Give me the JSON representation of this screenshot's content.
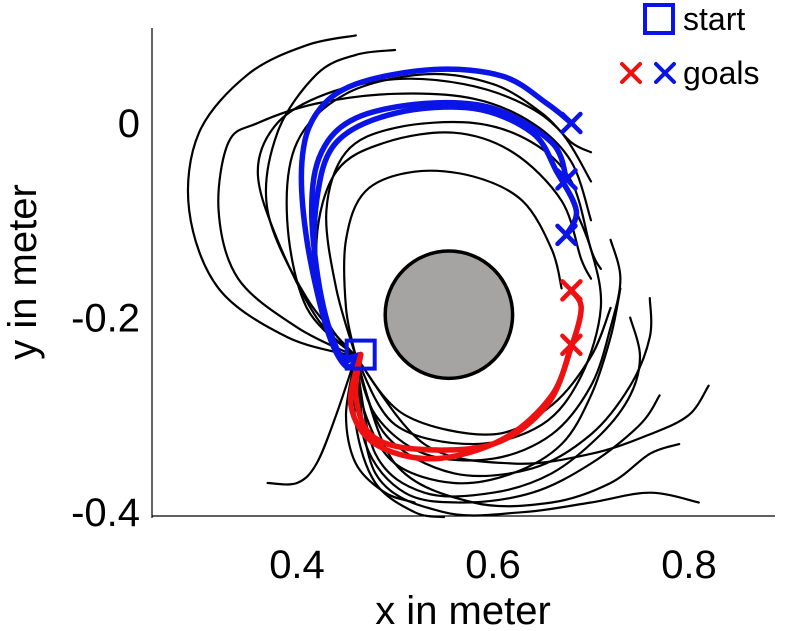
{
  "chart_data": {
    "type": "line",
    "xlabel": "x in meter",
    "ylabel": "y in meter",
    "xlim": [
      0.24,
      0.89
    ],
    "ylim": [
      -0.405,
      0.1
    ],
    "xticks": [
      0.4,
      0.6,
      0.8
    ],
    "xtick_labels": [
      "0.4",
      "0.6",
      "0.8"
    ],
    "yticks": [
      0,
      -0.2,
      -0.4
    ],
    "ytick_labels": [
      "0",
      "-0.2",
      "-0.4"
    ],
    "obstacle": {
      "center": [
        0.555,
        -0.197
      ],
      "radius": 0.065,
      "color": "#a6a3a3"
    },
    "start": {
      "label": "start",
      "x": 0.465,
      "y": -0.238,
      "color": "#0a14e6"
    },
    "legend": {
      "start_label": "start",
      "goals_label": "goals",
      "placement": "top-right"
    },
    "goals": {
      "blue": [
        [
          0.68,
          0.0
        ],
        [
          0.675,
          -0.058
        ],
        [
          0.675,
          -0.115
        ]
      ],
      "red": [
        [
          0.68,
          -0.172
        ],
        [
          0.68,
          -0.228
        ]
      ],
      "blue_color": "#0a14e6",
      "red_color": "#ee1111"
    },
    "series": [
      {
        "color": "#0a14e6",
        "kind": "generated",
        "values": [
          [
            0.465,
            -0.238
          ],
          [
            0.45,
            -0.25
          ],
          [
            0.43,
            -0.21
          ],
          [
            0.41,
            -0.12
          ],
          [
            0.405,
            -0.04
          ],
          [
            0.42,
            0.01
          ],
          [
            0.46,
            0.04
          ],
          [
            0.54,
            0.055
          ],
          [
            0.61,
            0.048
          ],
          [
            0.655,
            0.02
          ],
          [
            0.68,
            0.0
          ]
        ]
      },
      {
        "color": "#0a14e6",
        "kind": "generated",
        "values": [
          [
            0.465,
            -0.238
          ],
          [
            0.445,
            -0.24
          ],
          [
            0.425,
            -0.18
          ],
          [
            0.415,
            -0.09
          ],
          [
            0.425,
            -0.03
          ],
          [
            0.46,
            0.005
          ],
          [
            0.53,
            0.02
          ],
          [
            0.6,
            0.015
          ],
          [
            0.66,
            -0.02
          ],
          [
            0.675,
            -0.058
          ]
        ]
      },
      {
        "color": "#0a14e6",
        "kind": "generated",
        "values": [
          [
            0.465,
            -0.238
          ],
          [
            0.44,
            -0.235
          ],
          [
            0.42,
            -0.16
          ],
          [
            0.42,
            -0.08
          ],
          [
            0.44,
            -0.02
          ],
          [
            0.5,
            0.01
          ],
          [
            0.58,
            0.015
          ],
          [
            0.64,
            -0.01
          ],
          [
            0.665,
            -0.05
          ],
          [
            0.685,
            -0.09
          ],
          [
            0.675,
            -0.115
          ]
        ]
      },
      {
        "color": "#ee1111",
        "kind": "generated",
        "values": [
          [
            0.465,
            -0.238
          ],
          [
            0.46,
            -0.28
          ],
          [
            0.475,
            -0.32
          ],
          [
            0.52,
            -0.335
          ],
          [
            0.6,
            -0.33
          ],
          [
            0.655,
            -0.29
          ],
          [
            0.68,
            -0.23
          ],
          [
            0.69,
            -0.19
          ],
          [
            0.68,
            -0.172
          ]
        ]
      },
      {
        "color": "#ee1111",
        "kind": "generated",
        "values": [
          [
            0.465,
            -0.238
          ],
          [
            0.455,
            -0.29
          ],
          [
            0.48,
            -0.33
          ],
          [
            0.54,
            -0.345
          ],
          [
            0.61,
            -0.325
          ],
          [
            0.66,
            -0.28
          ],
          [
            0.68,
            -0.228
          ]
        ]
      },
      {
        "color": "#000000",
        "kind": "demonstration",
        "values": [
          [
            0.46,
            -0.24
          ],
          [
            0.41,
            -0.19
          ],
          [
            0.39,
            -0.1
          ],
          [
            0.4,
            -0.02
          ],
          [
            0.45,
            0.03
          ],
          [
            0.53,
            0.05
          ],
          [
            0.6,
            0.04
          ],
          [
            0.65,
            0.01
          ],
          [
            0.68,
            -0.02
          ],
          [
            0.7,
            -0.03
          ]
        ]
      },
      {
        "color": "#000000",
        "kind": "demonstration",
        "values": [
          [
            0.46,
            -0.24
          ],
          [
            0.42,
            -0.2
          ],
          [
            0.38,
            -0.12
          ],
          [
            0.36,
            -0.05
          ],
          [
            0.38,
            0.0
          ],
          [
            0.43,
            0.03
          ],
          [
            0.5,
            0.045
          ],
          [
            0.57,
            0.04
          ],
          [
            0.63,
            0.02
          ],
          [
            0.67,
            -0.01
          ],
          [
            0.7,
            -0.06
          ]
        ]
      },
      {
        "color": "#000000",
        "kind": "demonstration",
        "values": [
          [
            0.46,
            -0.24
          ],
          [
            0.4,
            -0.21
          ],
          [
            0.34,
            -0.16
          ],
          [
            0.32,
            -0.09
          ],
          [
            0.33,
            -0.02
          ],
          [
            0.36,
            0.0
          ],
          [
            0.42,
            0.02
          ],
          [
            0.5,
            0.03
          ],
          [
            0.58,
            0.025
          ],
          [
            0.64,
            0.0
          ],
          [
            0.68,
            -0.04
          ],
          [
            0.7,
            -0.1
          ]
        ]
      },
      {
        "color": "#000000",
        "kind": "demonstration",
        "values": [
          [
            0.46,
            -0.24
          ],
          [
            0.39,
            -0.22
          ],
          [
            0.32,
            -0.17
          ],
          [
            0.29,
            -0.09
          ],
          [
            0.3,
            -0.01
          ],
          [
            0.35,
            0.05
          ],
          [
            0.41,
            0.08
          ],
          [
            0.46,
            0.09
          ]
        ]
      },
      {
        "color": "#000000",
        "kind": "demonstration",
        "values": [
          [
            0.46,
            -0.24
          ],
          [
            0.41,
            -0.18
          ],
          [
            0.37,
            -0.09
          ],
          [
            0.38,
            -0.01
          ],
          [
            0.42,
            0.05
          ],
          [
            0.46,
            0.07
          ],
          [
            0.5,
            0.075
          ]
        ]
      },
      {
        "color": "#000000",
        "kind": "demonstration",
        "values": [
          [
            0.46,
            -0.24
          ],
          [
            0.44,
            -0.17
          ],
          [
            0.43,
            -0.09
          ],
          [
            0.45,
            -0.03
          ],
          [
            0.5,
            -0.005
          ],
          [
            0.58,
            0.0
          ],
          [
            0.64,
            -0.02
          ],
          [
            0.68,
            -0.06
          ],
          [
            0.7,
            -0.13
          ],
          [
            0.71,
            -0.15
          ]
        ]
      },
      {
        "color": "#000000",
        "kind": "demonstration",
        "values": [
          [
            0.46,
            -0.24
          ],
          [
            0.43,
            -0.2
          ],
          [
            0.42,
            -0.12
          ],
          [
            0.44,
            -0.05
          ],
          [
            0.49,
            -0.02
          ],
          [
            0.56,
            -0.01
          ],
          [
            0.62,
            -0.03
          ],
          [
            0.67,
            -0.08
          ],
          [
            0.69,
            -0.14
          ],
          [
            0.7,
            -0.16
          ]
        ]
      },
      {
        "color": "#000000",
        "kind": "demonstration",
        "values": [
          [
            0.46,
            -0.24
          ],
          [
            0.45,
            -0.19
          ],
          [
            0.45,
            -0.12
          ],
          [
            0.47,
            -0.07
          ],
          [
            0.52,
            -0.05
          ],
          [
            0.58,
            -0.055
          ],
          [
            0.63,
            -0.08
          ],
          [
            0.66,
            -0.13
          ],
          [
            0.67,
            -0.17
          ]
        ]
      },
      {
        "color": "#000000",
        "kind": "demonstration",
        "values": [
          [
            0.46,
            -0.24
          ],
          [
            0.47,
            -0.3
          ],
          [
            0.5,
            -0.35
          ],
          [
            0.56,
            -0.37
          ],
          [
            0.62,
            -0.36
          ],
          [
            0.67,
            -0.33
          ],
          [
            0.7,
            -0.28
          ],
          [
            0.72,
            -0.22
          ],
          [
            0.73,
            -0.17
          ]
        ]
      },
      {
        "color": "#000000",
        "kind": "demonstration",
        "values": [
          [
            0.46,
            -0.24
          ],
          [
            0.46,
            -0.31
          ],
          [
            0.48,
            -0.37
          ],
          [
            0.52,
            -0.4
          ],
          [
            0.55,
            -0.405
          ]
        ]
      },
      {
        "color": "#000000",
        "kind": "demonstration",
        "values": [
          [
            0.46,
            -0.24
          ],
          [
            0.44,
            -0.3
          ],
          [
            0.42,
            -0.35
          ],
          [
            0.4,
            -0.37
          ],
          [
            0.37,
            -0.37
          ]
        ]
      },
      {
        "color": "#000000",
        "kind": "demonstration",
        "values": [
          [
            0.46,
            -0.24
          ],
          [
            0.45,
            -0.3
          ],
          [
            0.46,
            -0.35
          ],
          [
            0.49,
            -0.38
          ],
          [
            0.52,
            -0.39
          ]
        ]
      },
      {
        "color": "#000000",
        "kind": "demonstration",
        "values": [
          [
            0.46,
            -0.24
          ],
          [
            0.48,
            -0.3
          ],
          [
            0.53,
            -0.34
          ],
          [
            0.6,
            -0.345
          ],
          [
            0.66,
            -0.32
          ],
          [
            0.7,
            -0.27
          ],
          [
            0.72,
            -0.21
          ],
          [
            0.73,
            -0.16
          ],
          [
            0.72,
            -0.12
          ]
        ]
      },
      {
        "color": "#000000",
        "kind": "demonstration",
        "values": [
          [
            0.46,
            -0.24
          ],
          [
            0.49,
            -0.32
          ],
          [
            0.56,
            -0.36
          ],
          [
            0.64,
            -0.355
          ],
          [
            0.7,
            -0.32
          ],
          [
            0.74,
            -0.27
          ],
          [
            0.76,
            -0.22
          ],
          [
            0.76,
            -0.18
          ]
        ]
      },
      {
        "color": "#000000",
        "kind": "demonstration",
        "values": [
          [
            0.46,
            -0.24
          ],
          [
            0.47,
            -0.33
          ],
          [
            0.51,
            -0.38
          ],
          [
            0.57,
            -0.39
          ],
          [
            0.64,
            -0.38
          ],
          [
            0.7,
            -0.35
          ],
          [
            0.75,
            -0.31
          ],
          [
            0.77,
            -0.28
          ]
        ]
      },
      {
        "color": "#000000",
        "kind": "demonstration",
        "values": [
          [
            0.46,
            -0.24
          ],
          [
            0.5,
            -0.31
          ],
          [
            0.58,
            -0.33
          ],
          [
            0.65,
            -0.31
          ],
          [
            0.69,
            -0.26
          ],
          [
            0.71,
            -0.19
          ],
          [
            0.7,
            -0.13
          ],
          [
            0.68,
            -0.08
          ]
        ]
      },
      {
        "color": "#000000",
        "kind": "demonstration",
        "values": [
          [
            0.46,
            -0.24
          ],
          [
            0.51,
            -0.3
          ],
          [
            0.6,
            -0.32
          ],
          [
            0.66,
            -0.29
          ],
          [
            0.7,
            -0.24
          ],
          [
            0.72,
            -0.19
          ]
        ]
      },
      {
        "color": "#000000",
        "kind": "demonstration",
        "values": [
          [
            0.46,
            -0.24
          ],
          [
            0.48,
            -0.34
          ],
          [
            0.53,
            -0.38
          ],
          [
            0.6,
            -0.38
          ],
          [
            0.66,
            -0.36
          ],
          [
            0.71,
            -0.32
          ],
          [
            0.74,
            -0.28
          ],
          [
            0.75,
            -0.24
          ],
          [
            0.74,
            -0.2
          ]
        ]
      },
      {
        "color": "#000000",
        "kind": "demonstration",
        "values": [
          [
            0.46,
            -0.24
          ],
          [
            0.5,
            -0.35
          ],
          [
            0.58,
            -0.39
          ],
          [
            0.66,
            -0.39
          ],
          [
            0.72,
            -0.37
          ],
          [
            0.76,
            -0.34
          ],
          [
            0.79,
            -0.33
          ]
        ]
      },
      {
        "color": "#000000",
        "kind": "demonstration",
        "values": [
          [
            0.46,
            -0.24
          ],
          [
            0.53,
            -0.33
          ],
          [
            0.62,
            -0.35
          ],
          [
            0.7,
            -0.34
          ],
          [
            0.76,
            -0.32
          ],
          [
            0.8,
            -0.3
          ],
          [
            0.82,
            -0.27
          ]
        ]
      },
      {
        "color": "#000000",
        "kind": "demonstration",
        "values": [
          [
            0.46,
            -0.24
          ],
          [
            0.48,
            -0.36
          ],
          [
            0.55,
            -0.4
          ],
          [
            0.63,
            -0.4
          ],
          [
            0.7,
            -0.39
          ],
          [
            0.76,
            -0.38
          ],
          [
            0.81,
            -0.39
          ]
        ]
      }
    ]
  }
}
